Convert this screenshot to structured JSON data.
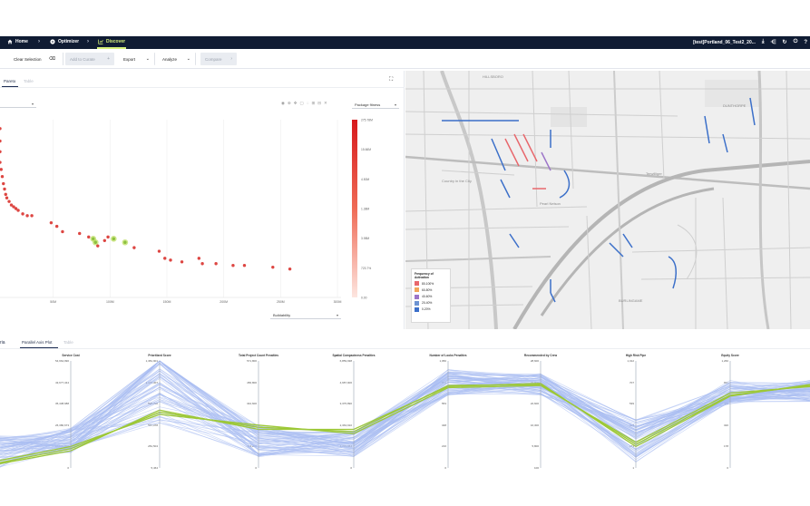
{
  "nav": {
    "home": "Home",
    "optimizer": "Optimizer",
    "discover": "Discover",
    "project": "[test]Portland_06_Test2_20..."
  },
  "toolbar": {
    "clear_selection": "Clear Selection",
    "add_to_curate": "Add to Curate",
    "export": "Export",
    "analyze": "Analyze",
    "compare": "Compare"
  },
  "pareto": {
    "tabs": [
      "Pareto",
      "Table"
    ],
    "color_metric": "Package fitness",
    "x_metric": "Buildability",
    "colorbar_ticks": [
      "275.78M",
      "15.66M",
      "4.50M",
      "1.38M",
      "3.98M",
      "723.7%",
      "0.00"
    ]
  },
  "chart_data": [
    {
      "type": "scatter",
      "title": "Pareto",
      "xlabel": "Buildability",
      "ylabel": "",
      "x_ticks": [
        "50M",
        "100M",
        "150M",
        "200M",
        "250M",
        "300M"
      ],
      "xlim": [
        0,
        300
      ],
      "ylim": [
        0,
        100
      ],
      "points": [
        {
          "x": 0,
          "y": 95
        },
        {
          "x": 0,
          "y": 88
        },
        {
          "x": 0,
          "y": 82
        },
        {
          "x": 0,
          "y": 76
        },
        {
          "x": 1,
          "y": 72
        },
        {
          "x": 2,
          "y": 68
        },
        {
          "x": 3,
          "y": 64
        },
        {
          "x": 4,
          "y": 61
        },
        {
          "x": 5,
          "y": 58
        },
        {
          "x": 6,
          "y": 56
        },
        {
          "x": 8,
          "y": 54
        },
        {
          "x": 10,
          "y": 52
        },
        {
          "x": 12,
          "y": 51
        },
        {
          "x": 14,
          "y": 50
        },
        {
          "x": 16,
          "y": 49
        },
        {
          "x": 20,
          "y": 47
        },
        {
          "x": 24,
          "y": 46
        },
        {
          "x": 28,
          "y": 46
        },
        {
          "x": 45,
          "y": 42
        },
        {
          "x": 50,
          "y": 40
        },
        {
          "x": 55,
          "y": 37
        },
        {
          "x": 70,
          "y": 36
        },
        {
          "x": 78,
          "y": 34
        },
        {
          "x": 82,
          "y": 33,
          "selected": true
        },
        {
          "x": 84,
          "y": 31,
          "selected": true
        },
        {
          "x": 86,
          "y": 29
        },
        {
          "x": 92,
          "y": 32
        },
        {
          "x": 95,
          "y": 34
        },
        {
          "x": 100,
          "y": 33,
          "selected": true
        },
        {
          "x": 110,
          "y": 31,
          "selected": true
        },
        {
          "x": 118,
          "y": 28
        },
        {
          "x": 140,
          "y": 26
        },
        {
          "x": 145,
          "y": 22
        },
        {
          "x": 150,
          "y": 21
        },
        {
          "x": 160,
          "y": 20
        },
        {
          "x": 175,
          "y": 22
        },
        {
          "x": 178,
          "y": 19
        },
        {
          "x": 190,
          "y": 19
        },
        {
          "x": 205,
          "y": 18
        },
        {
          "x": 215,
          "y": 18
        },
        {
          "x": 240,
          "y": 17
        },
        {
          "x": 255,
          "y": 16
        }
      ]
    },
    {
      "type": "parallel-coordinates",
      "title": "Parallel Axis Plot",
      "axes": [
        {
          "name": "Service Cost",
          "ticks": [
            "54,964,990",
            "43,677,344",
            "35,438,688",
            "26,380,673",
            "15,950,826",
            "0"
          ]
        },
        {
          "name": "Prioritized Score",
          "ticks": [
            "1,381,901",
            "1,105,307",
            "828,700",
            "567,078",
            "281,504",
            "5,464"
          ]
        },
        {
          "name": "Total Project Count Penalties",
          "ticks": [
            "571,800",
            "456,800",
            "342,600",
            "228,400",
            "114,200",
            "0"
          ]
        },
        {
          "name": "Spatial Compactness Penalties",
          "ticks": [
            "6,859,938",
            "4,687,906",
            "3,375,890",
            "2,363,910",
            "1,223,964",
            "0"
          ]
        },
        {
          "name": "Number of Looks Penalties",
          "ticks": [
            "1,050",
            "871",
            "553",
            "348",
            "216",
            "0"
          ]
        },
        {
          "name": "Recommended by Crew",
          "ticks": [
            "28,600",
            "22,800",
            "22,600",
            "16,300",
            "5,800",
            "100"
          ]
        },
        {
          "name": "High Risk Pipe",
          "ticks": [
            "1,012",
            "707",
            "539",
            "323",
            "171",
            "1"
          ]
        },
        {
          "name": "Equity Score",
          "ticks": [
            "1,260",
            "691",
            "569",
            "320",
            "178",
            "0"
          ]
        }
      ]
    }
  ],
  "pap": {
    "left_label": "ria",
    "tabs": [
      "Parallel Axis Plot",
      "Table"
    ]
  },
  "map": {
    "labels": [
      "HILLSBORO",
      "Country in the City",
      "Pearl Nelson",
      "BURLINGAME",
      "Terwilliger",
      "DUNTHORPE"
    ],
    "legend": {
      "title": "Frequency of Activation",
      "items": [
        "80-100%",
        "60-80%",
        "40-60%",
        "20-40%",
        "0-20%"
      ],
      "colors": [
        "#e8676c",
        "#f2a65a",
        "#9c75c8",
        "#6c93d2",
        "#3b6fc9"
      ]
    }
  }
}
